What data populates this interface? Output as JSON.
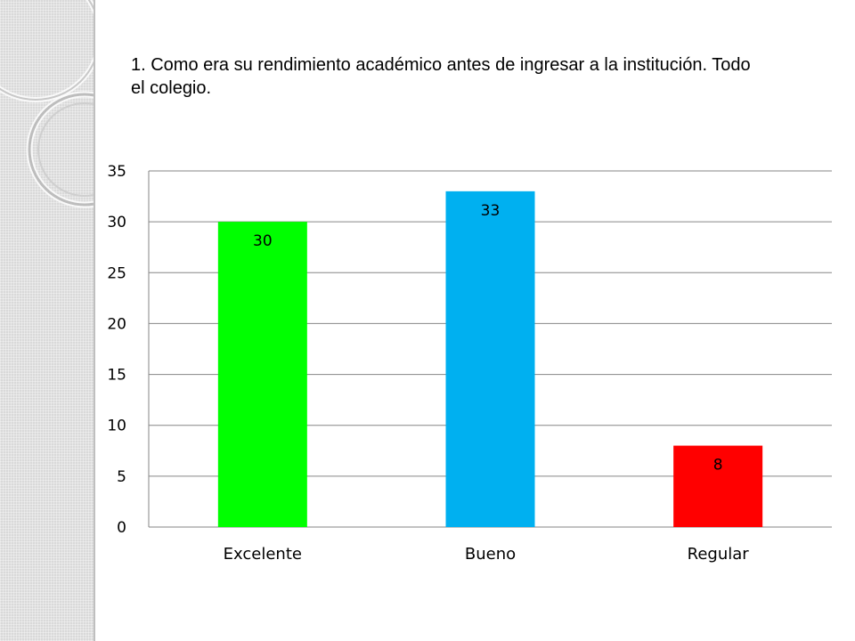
{
  "slide": {
    "title": "1. Como era su rendimiento académico antes de ingresar a la institución. Todo el colegio."
  },
  "decoration": {
    "panel_color": "#d9d9d9",
    "ring_color": "#c8c8c8"
  },
  "chart_data": {
    "type": "bar",
    "categories": [
      "Excelente",
      "Bueno",
      "Regular"
    ],
    "values": [
      30,
      33,
      8
    ],
    "colors": [
      "#00ff00",
      "#00b0f0",
      "#ff0000"
    ],
    "data_labels": [
      "30",
      "33",
      "8"
    ],
    "ylim": [
      0,
      35
    ],
    "yticks": [
      0,
      5,
      10,
      15,
      20,
      25,
      30,
      35
    ],
    "grid": true,
    "legend": "none",
    "title": "",
    "xlabel": "",
    "ylabel": ""
  }
}
